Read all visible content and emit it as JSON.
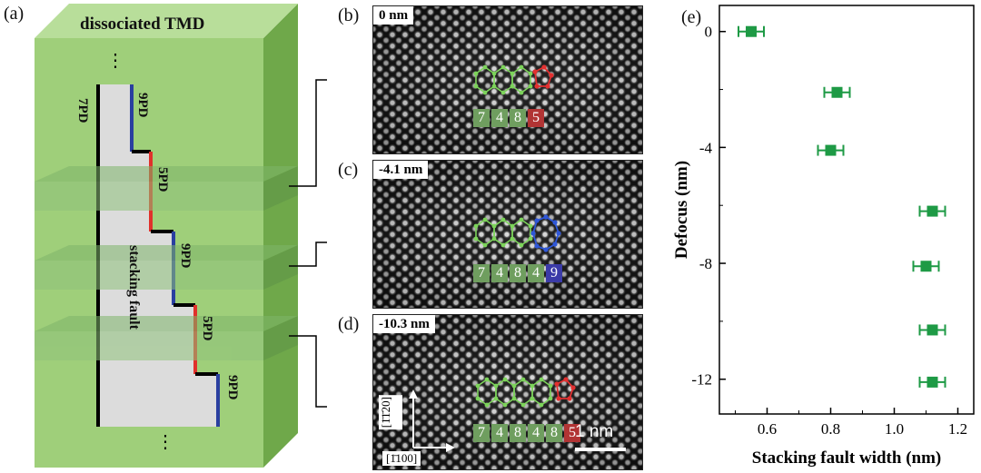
{
  "panels": {
    "a": {
      "label": "(a)",
      "title": "dissociated TMD",
      "top_dots": "⋮",
      "bottom_dots": "⋮",
      "labels": {
        "pd7": "7PD",
        "pd9_top": "9PD",
        "pd5_a": "5PD",
        "pd9_mid": "9PD",
        "pd5_b": "5PD",
        "pd9_bot": "9PD",
        "fault": "stacking fault"
      },
      "colors": {
        "green_face": "#9fcf7a",
        "green_side": "#6fa84a",
        "fault": "#d9d9d9",
        "red": "#e0312b",
        "blue": "#2a3fa0"
      }
    },
    "b": {
      "label": "(b)",
      "defocus": "0 nm",
      "boxes": [
        "7",
        "4",
        "8",
        "5"
      ]
    },
    "c": {
      "label": "(c)",
      "defocus": "-4.1 nm",
      "boxes": [
        "7",
        "4",
        "8",
        "4",
        "9"
      ]
    },
    "d": {
      "label": "(d)",
      "defocus": "-10.3 nm",
      "boxes": [
        "7",
        "4",
        "8",
        "4",
        "8",
        "5"
      ],
      "scalebar": "1 nm",
      "dir_up": "[1̄1̄20]",
      "dir_right": "[1̄100]"
    },
    "e": {
      "label": "(e)"
    }
  },
  "chart_data": {
    "type": "scatter",
    "xlabel": "Stacking fault width (nm)",
    "ylabel": "Defocus (nm)",
    "xlim": [
      0.45,
      1.25
    ],
    "ylim": [
      -13.2,
      0.9
    ],
    "xticks": [
      0.6,
      0.8,
      1.0,
      1.2
    ],
    "xtick_labels": [
      "0.6",
      "0.8",
      "1.0",
      "1.2"
    ],
    "yticks": [
      0,
      -4,
      -8,
      -12
    ],
    "ytick_labels": [
      "0",
      "-4",
      "-8",
      "-12"
    ],
    "marker_color": "#1e9a45",
    "series": [
      {
        "x": [
          0.55,
          0.82,
          0.8,
          1.12,
          1.1,
          1.12,
          1.12
        ],
        "y": [
          0,
          -2.1,
          -4.1,
          -6.2,
          -8.1,
          -10.3,
          -12.1
        ],
        "xerr": [
          0.04,
          0.04,
          0.04,
          0.04,
          0.04,
          0.04,
          0.04
        ]
      }
    ],
    "grid": false
  }
}
